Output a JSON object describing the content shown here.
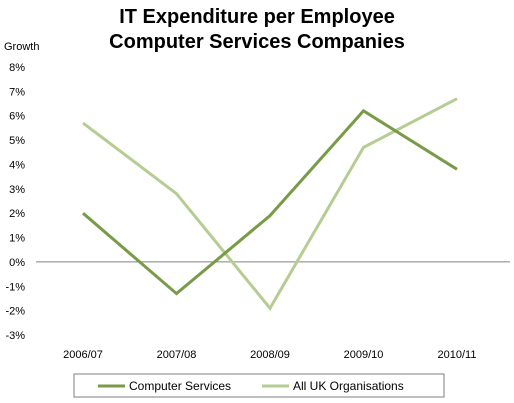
{
  "chart_data": {
    "type": "line",
    "title_line1": "IT Expenditure per Employee",
    "title_line2": "Computer Services Companies",
    "ylabel": "Growth",
    "xlabel": "",
    "categories": [
      "2006/07",
      "2007/08",
      "2008/09",
      "2009/10",
      "2010/11"
    ],
    "ylim": [
      -3,
      8
    ],
    "yticks": [
      "8%",
      "7%",
      "6%",
      "5%",
      "4%",
      "3%",
      "2%",
      "1%",
      "0%",
      "-1%",
      "-2%",
      "-3%"
    ],
    "series": [
      {
        "name": "Computer Services",
        "values": [
          2.0,
          -1.3,
          1.9,
          6.2,
          3.8
        ],
        "color": "#779b47"
      },
      {
        "name": "All UK Organisations",
        "values": [
          5.7,
          2.8,
          -1.9,
          4.7,
          6.7
        ],
        "color": "#b5cc93"
      }
    ],
    "grid": false,
    "legend_position": "bottom"
  }
}
